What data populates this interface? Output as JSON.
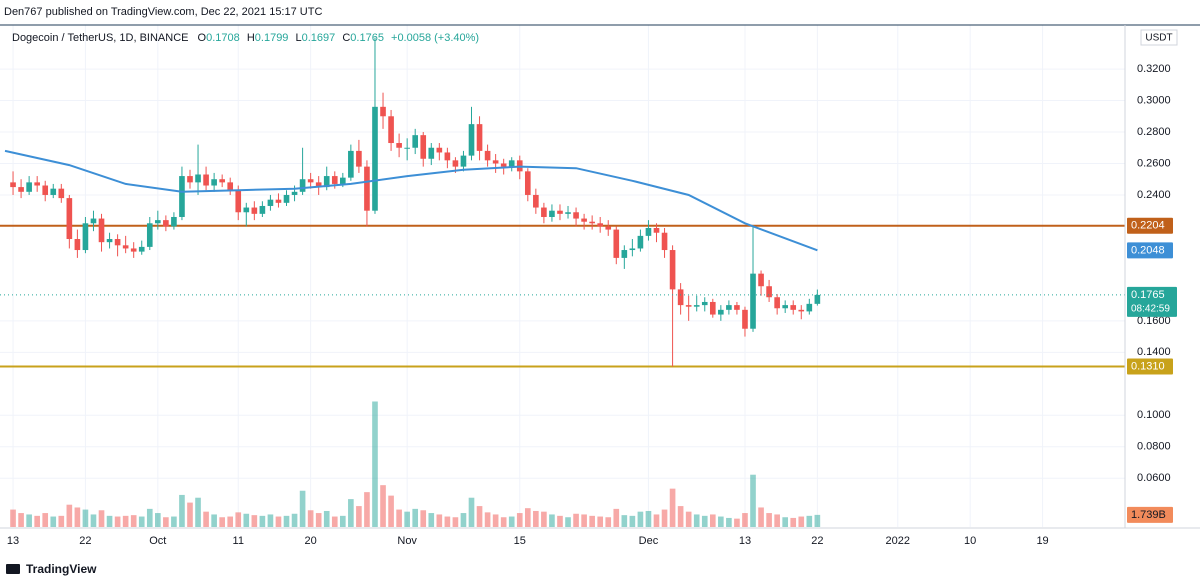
{
  "chart_data": {
    "type": "candlestick",
    "publisher": "Den767 published on TradingView.com, Dec 22, 2021 15:17 UTC",
    "symbol": "Dogecoin / TetherUS, 1D, BINANCE",
    "ohlc_labels": [
      "O",
      "H",
      "L",
      "C"
    ],
    "change": "+0.0058 (+3.40%)",
    "axis_unit": "USDT",
    "countdown": "08:42:59",
    "footer": "TradingView",
    "up_color": "#26a69a",
    "down_color": "#ef5350",
    "grid": true,
    "xlim": [
      "2021-09-12",
      "2022-01-29"
    ],
    "ylim": [
      0.029,
      0.348
    ],
    "volume_lim": [
      0,
      72
    ],
    "xticks": [
      {
        "value": "2021-09-13",
        "label": "13"
      },
      {
        "value": "2021-09-22",
        "label": "22"
      },
      {
        "value": "2021-10-01",
        "label": "Oct"
      },
      {
        "value": "2021-10-11",
        "label": "11"
      },
      {
        "value": "2021-10-20",
        "label": "20"
      },
      {
        "value": "2021-11-01",
        "label": "Nov"
      },
      {
        "value": "2021-11-15",
        "label": "15"
      },
      {
        "value": "2021-12-01",
        "label": "Dec"
      },
      {
        "value": "2021-12-13",
        "label": "13"
      },
      {
        "value": "2021-12-22",
        "label": "22"
      },
      {
        "value": "2022-01-01",
        "label": "2022"
      },
      {
        "value": "2022-01-10",
        "label": "10"
      },
      {
        "value": "2022-01-19",
        "label": "19"
      }
    ],
    "yticks": [
      {
        "value": 0.32,
        "label": "0.3200"
      },
      {
        "value": 0.3,
        "label": "0.3000"
      },
      {
        "value": 0.28,
        "label": "0.2800"
      },
      {
        "value": 0.26,
        "label": "0.2600"
      },
      {
        "value": 0.24,
        "label": "0.2400"
      },
      {
        "value": 0.16,
        "label": "0.1600"
      },
      {
        "value": 0.14,
        "label": "0.1400"
      },
      {
        "value": 0.1,
        "label": "0.1000"
      },
      {
        "value": 0.08,
        "label": "0.0800"
      },
      {
        "value": 0.06,
        "label": "0.0600"
      }
    ],
    "levels": [
      {
        "value": 0.2204,
        "color": "#c0601a"
      },
      {
        "value": 0.131,
        "label": "0.1310",
        "color": "#c8a21b"
      }
    ],
    "ma": {
      "color": "#3d8fd6",
      "x": [
        "2021-09-12",
        "2021-09-20",
        "2021-09-27",
        "2021-10-04",
        "2021-10-11",
        "2021-10-18",
        "2021-10-25",
        "2021-11-01",
        "2021-11-08",
        "2021-11-15",
        "2021-11-22",
        "2021-11-29",
        "2021-12-06",
        "2021-12-13",
        "2021-12-22"
      ],
      "values": [
        0.268,
        0.259,
        0.247,
        0.242,
        0.243,
        0.244,
        0.247,
        0.252,
        0.256,
        0.258,
        0.257,
        0.249,
        0.24,
        0.222,
        0.2048
      ]
    },
    "volume_marker": {
      "value": 1.739,
      "label": "1.739B"
    },
    "dates": [
      "2021-09-13",
      "2021-09-14",
      "2021-09-15",
      "2021-09-16",
      "2021-09-17",
      "2021-09-18",
      "2021-09-19",
      "2021-09-20",
      "2021-09-21",
      "2021-09-22",
      "2021-09-23",
      "2021-09-24",
      "2021-09-25",
      "2021-09-26",
      "2021-09-27",
      "2021-09-28",
      "2021-09-29",
      "2021-09-30",
      "2021-10-01",
      "2021-10-02",
      "2021-10-03",
      "2021-10-04",
      "2021-10-05",
      "2021-10-06",
      "2021-10-07",
      "2021-10-08",
      "2021-10-09",
      "2021-10-10",
      "2021-10-11",
      "2021-10-12",
      "2021-10-13",
      "2021-10-14",
      "2021-10-15",
      "2021-10-16",
      "2021-10-17",
      "2021-10-18",
      "2021-10-19",
      "2021-10-20",
      "2021-10-21",
      "2021-10-22",
      "2021-10-23",
      "2021-10-24",
      "2021-10-25",
      "2021-10-26",
      "2021-10-27",
      "2021-10-28",
      "2021-10-29",
      "2021-10-30",
      "2021-10-31",
      "2021-11-01",
      "2021-11-02",
      "2021-11-03",
      "2021-11-04",
      "2021-11-05",
      "2021-11-06",
      "2021-11-07",
      "2021-11-08",
      "2021-11-09",
      "2021-11-10",
      "2021-11-11",
      "2021-11-12",
      "2021-11-13",
      "2021-11-14",
      "2021-11-15",
      "2021-11-16",
      "2021-11-17",
      "2021-11-18",
      "2021-11-19",
      "2021-11-20",
      "2021-11-21",
      "2021-11-22",
      "2021-11-23",
      "2021-11-24",
      "2021-11-25",
      "2021-11-26",
      "2021-11-27",
      "2021-11-28",
      "2021-11-29",
      "2021-11-30",
      "2021-12-01",
      "2021-12-02",
      "2021-12-03",
      "2021-12-04",
      "2021-12-05",
      "2021-12-06",
      "2021-12-07",
      "2021-12-08",
      "2021-12-09",
      "2021-12-10",
      "2021-12-11",
      "2021-12-12",
      "2021-12-13",
      "2021-12-14",
      "2021-12-15",
      "2021-12-16",
      "2021-12-17",
      "2021-12-18",
      "2021-12-19",
      "2021-12-20",
      "2021-12-21",
      "2021-12-22"
    ],
    "open": [
      0.248,
      0.245,
      0.242,
      0.248,
      0.246,
      0.24,
      0.244,
      0.238,
      0.212,
      0.205,
      0.222,
      0.225,
      0.21,
      0.212,
      0.208,
      0.206,
      0.204,
      0.207,
      0.222,
      0.224,
      0.22,
      0.226,
      0.252,
      0.248,
      0.253,
      0.246,
      0.25,
      0.248,
      0.243,
      0.229,
      0.232,
      0.228,
      0.233,
      0.237,
      0.235,
      0.24,
      0.242,
      0.25,
      0.248,
      0.245,
      0.252,
      0.247,
      0.251,
      0.268,
      0.258,
      0.23,
      0.296,
      0.29,
      0.273,
      0.27,
      0.27,
      0.278,
      0.263,
      0.27,
      0.267,
      0.262,
      0.258,
      0.265,
      0.285,
      0.268,
      0.262,
      0.26,
      0.258,
      0.262,
      0.255,
      0.24,
      0.232,
      0.226,
      0.23,
      0.228,
      0.229,
      0.225,
      0.223,
      0.222,
      0.22,
      0.218,
      0.2,
      0.205,
      0.206,
      0.214,
      0.219,
      0.216,
      0.205,
      0.18,
      0.17,
      0.169,
      0.17,
      0.172,
      0.164,
      0.167,
      0.17,
      0.167,
      0.155,
      0.19,
      0.182,
      0.175,
      0.168,
      0.17,
      0.167,
      0.166,
      0.1708
    ],
    "high": [
      0.255,
      0.25,
      0.252,
      0.252,
      0.249,
      0.247,
      0.247,
      0.24,
      0.218,
      0.226,
      0.23,
      0.228,
      0.216,
      0.215,
      0.214,
      0.21,
      0.211,
      0.226,
      0.23,
      0.227,
      0.229,
      0.258,
      0.256,
      0.272,
      0.258,
      0.254,
      0.253,
      0.251,
      0.246,
      0.235,
      0.236,
      0.236,
      0.24,
      0.241,
      0.243,
      0.246,
      0.27,
      0.254,
      0.252,
      0.258,
      0.255,
      0.254,
      0.272,
      0.275,
      0.262,
      0.34,
      0.305,
      0.294,
      0.279,
      0.276,
      0.282,
      0.28,
      0.273,
      0.273,
      0.27,
      0.264,
      0.268,
      0.296,
      0.29,
      0.272,
      0.266,
      0.263,
      0.264,
      0.265,
      0.257,
      0.244,
      0.235,
      0.234,
      0.234,
      0.233,
      0.232,
      0.228,
      0.227,
      0.226,
      0.224,
      0.22,
      0.208,
      0.212,
      0.218,
      0.224,
      0.222,
      0.219,
      0.208,
      0.184,
      0.176,
      0.176,
      0.175,
      0.174,
      0.17,
      0.173,
      0.172,
      0.169,
      0.22,
      0.192,
      0.186,
      0.177,
      0.173,
      0.173,
      0.17,
      0.174,
      0.1799
    ],
    "low": [
      0.24,
      0.238,
      0.24,
      0.242,
      0.236,
      0.238,
      0.235,
      0.206,
      0.2,
      0.203,
      0.217,
      0.204,
      0.206,
      0.201,
      0.203,
      0.2,
      0.202,
      0.205,
      0.218,
      0.217,
      0.218,
      0.224,
      0.244,
      0.24,
      0.243,
      0.242,
      0.245,
      0.24,
      0.224,
      0.22,
      0.224,
      0.226,
      0.23,
      0.232,
      0.233,
      0.236,
      0.24,
      0.244,
      0.24,
      0.243,
      0.244,
      0.245,
      0.249,
      0.254,
      0.22,
      0.228,
      0.282,
      0.268,
      0.264,
      0.262,
      0.266,
      0.258,
      0.259,
      0.262,
      0.257,
      0.254,
      0.255,
      0.262,
      0.262,
      0.258,
      0.254,
      0.253,
      0.255,
      0.25,
      0.236,
      0.228,
      0.222,
      0.223,
      0.224,
      0.225,
      0.22,
      0.218,
      0.218,
      0.216,
      0.214,
      0.196,
      0.193,
      0.201,
      0.204,
      0.211,
      0.21,
      0.2,
      0.131,
      0.164,
      0.16,
      0.166,
      0.166,
      0.162,
      0.16,
      0.164,
      0.164,
      0.15,
      0.153,
      0.176,
      0.172,
      0.164,
      0.165,
      0.164,
      0.161,
      0.164,
      0.1697
    ],
    "close": [
      0.245,
      0.242,
      0.248,
      0.246,
      0.24,
      0.244,
      0.238,
      0.212,
      0.205,
      0.222,
      0.225,
      0.21,
      0.212,
      0.208,
      0.206,
      0.204,
      0.207,
      0.222,
      0.224,
      0.22,
      0.226,
      0.252,
      0.248,
      0.253,
      0.246,
      0.25,
      0.248,
      0.243,
      0.229,
      0.232,
      0.228,
      0.233,
      0.237,
      0.235,
      0.24,
      0.242,
      0.25,
      0.248,
      0.245,
      0.252,
      0.247,
      0.251,
      0.268,
      0.258,
      0.23,
      0.296,
      0.29,
      0.273,
      0.27,
      0.27,
      0.278,
      0.263,
      0.27,
      0.267,
      0.262,
      0.258,
      0.265,
      0.285,
      0.268,
      0.262,
      0.26,
      0.258,
      0.262,
      0.255,
      0.24,
      0.232,
      0.226,
      0.23,
      0.228,
      0.229,
      0.225,
      0.223,
      0.222,
      0.22,
      0.218,
      0.2,
      0.205,
      0.206,
      0.214,
      0.219,
      0.216,
      0.205,
      0.18,
      0.17,
      0.169,
      0.17,
      0.172,
      0.164,
      0.167,
      0.17,
      0.167,
      0.155,
      0.19,
      0.182,
      0.175,
      0.168,
      0.17,
      0.167,
      0.166,
      0.1708,
      0.1765
    ],
    "volume": [
      2.5,
      2.0,
      1.8,
      1.6,
      2.0,
      1.5,
      1.6,
      3.2,
      2.8,
      2.5,
      1.8,
      2.4,
      1.6,
      1.5,
      1.6,
      1.7,
      1.5,
      2.6,
      2.0,
      1.4,
      1.5,
      4.6,
      3.5,
      4.2,
      2.2,
      1.8,
      1.4,
      1.5,
      2.1,
      1.9,
      1.7,
      1.6,
      1.8,
      1.5,
      1.6,
      1.9,
      5.2,
      2.4,
      2.0,
      2.3,
      1.5,
      1.6,
      4.0,
      3.0,
      5.0,
      18.0,
      6.0,
      4.5,
      2.5,
      2.2,
      2.6,
      2.4,
      2.0,
      1.8,
      1.5,
      1.4,
      2.0,
      4.2,
      3.0,
      2.1,
      1.8,
      1.4,
      1.5,
      2.0,
      2.7,
      2.3,
      2.2,
      1.8,
      1.6,
      1.4,
      1.9,
      1.8,
      1.6,
      1.5,
      1.4,
      2.6,
      1.7,
      1.6,
      2.2,
      2.3,
      1.8,
      2.5,
      5.5,
      3.0,
      2.2,
      1.8,
      1.6,
      1.8,
      1.5,
      1.3,
      1.2,
      2.0,
      7.5,
      2.8,
      2.0,
      1.8,
      1.4,
      1.3,
      1.5,
      1.6,
      1.739
    ]
  }
}
